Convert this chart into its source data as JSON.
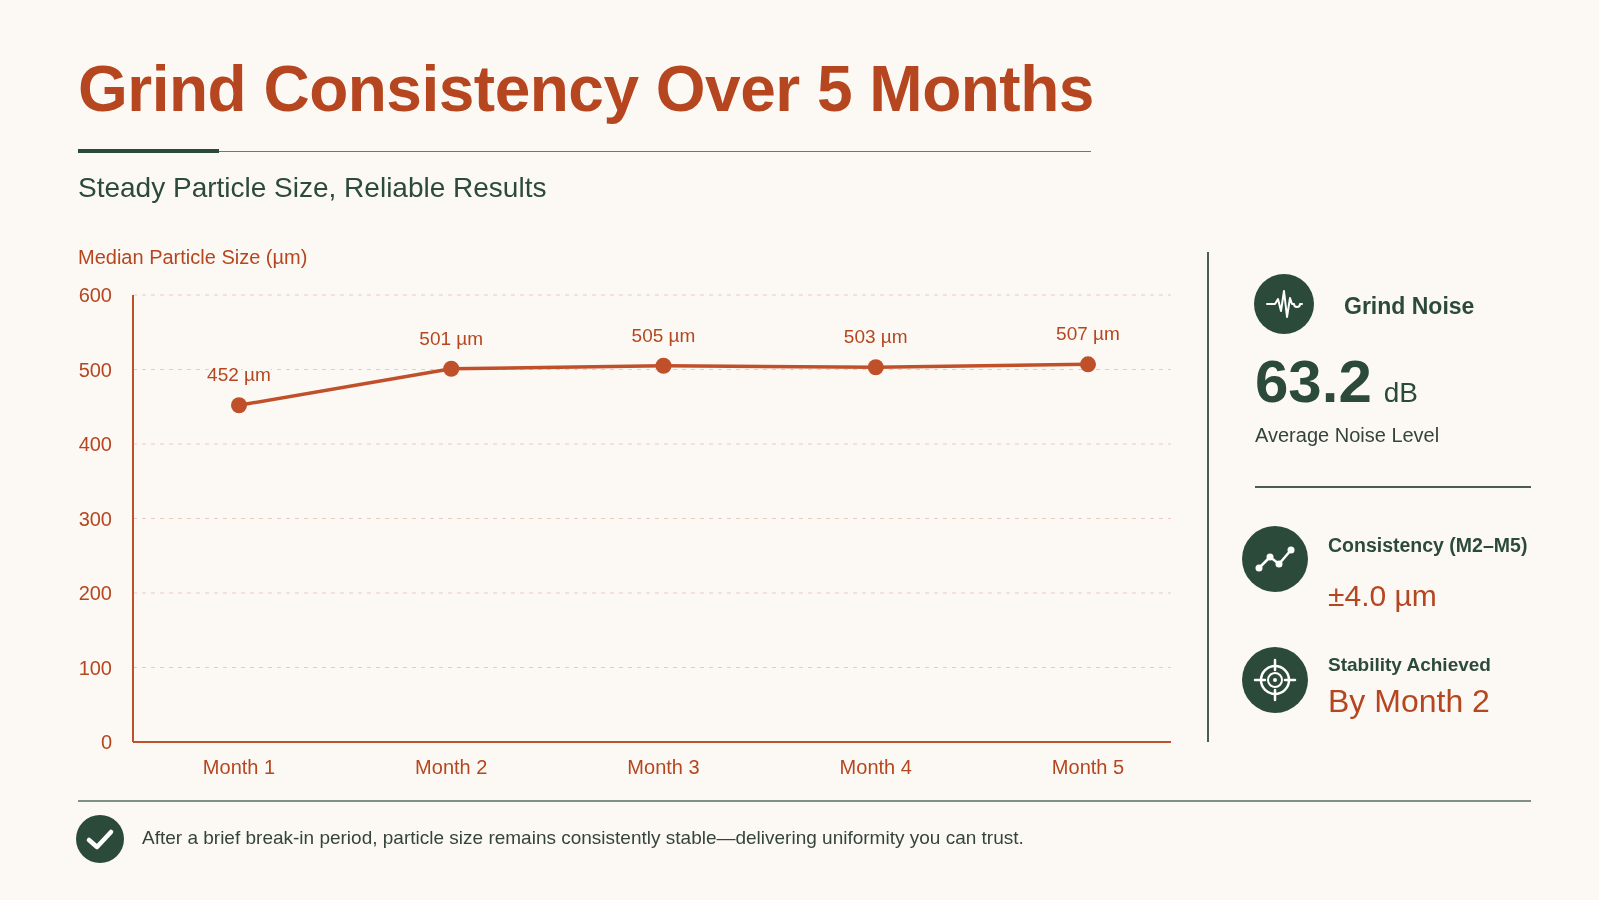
{
  "chart_data": [
    {
      "type": "line",
      "title": "Grind Consistency Over 5 Months",
      "subtitle": "Steady Particle Size, Reliable Results",
      "ylabel": "Median Particle Size (µm)",
      "categories": [
        "Month 1",
        "Month 2",
        "Month 3",
        "Month 4",
        "Month 5"
      ],
      "values": [
        452,
        501,
        505,
        503,
        507
      ],
      "color": "#c0502a",
      "value_labels": [
        "452 µm",
        "501 µm",
        "505 µm",
        "503 µm",
        "507 µm"
      ],
      "ylim": [
        0,
        600
      ],
      "yticks": [
        0,
        100,
        200,
        300,
        400,
        500,
        600
      ],
      "grid": "y",
      "marker": "circle",
      "line_style": "solid",
      "annotations": [
        "After a brief break-in period, particle size remains consistently stable—delivering uniformity you can trust."
      ]
    },
    {
      "type": "other",
      "annotations": [
        "Grind Noise",
        "63.2 dB",
        "Average Noise Level",
        "Consistency (M2–M5)",
        "±4.0 µm",
        "Stability Achieved",
        "By Month 2"
      ]
    }
  ]
}
